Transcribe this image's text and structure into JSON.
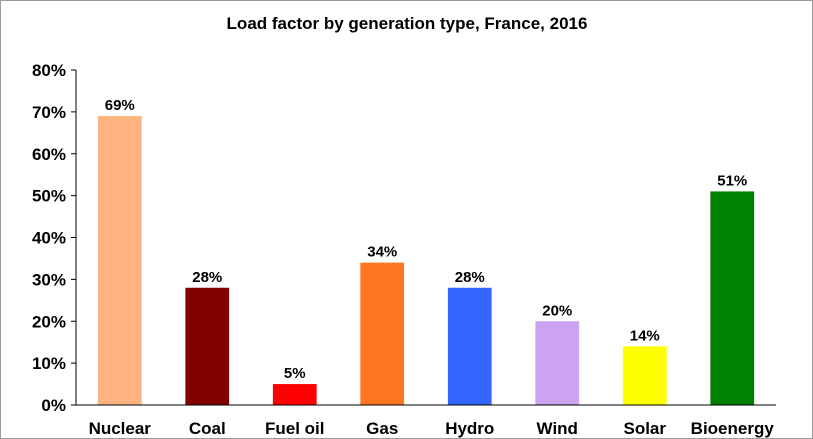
{
  "chart_data": {
    "type": "bar",
    "title": "Load factor by generation type, France, 2016",
    "categories": [
      "Nuclear",
      "Coal",
      "Fuel oil",
      "Gas",
      "Hydro",
      "Wind",
      "Solar",
      "Bioenergy"
    ],
    "values": [
      69,
      28,
      5,
      34,
      28,
      20,
      14,
      51
    ],
    "value_labels": [
      "69%",
      "28%",
      "5%",
      "34%",
      "28%",
      "20%",
      "14%",
      "51%"
    ],
    "bar_colors": [
      "#FFB380",
      "#800000",
      "#FF0000",
      "#FF7722",
      "#3366FF",
      "#CCA3F0",
      "#FFFF00",
      "#008000"
    ],
    "xlabel": "",
    "ylabel": "",
    "ylim": [
      0,
      80
    ],
    "yticks": [
      0,
      10,
      20,
      30,
      40,
      50,
      60,
      70,
      80
    ],
    "ytick_labels": [
      "0%",
      "10%",
      "20%",
      "30%",
      "40%",
      "50%",
      "60%",
      "70%",
      "80%"
    ],
    "grid": false,
    "legend": "none"
  }
}
